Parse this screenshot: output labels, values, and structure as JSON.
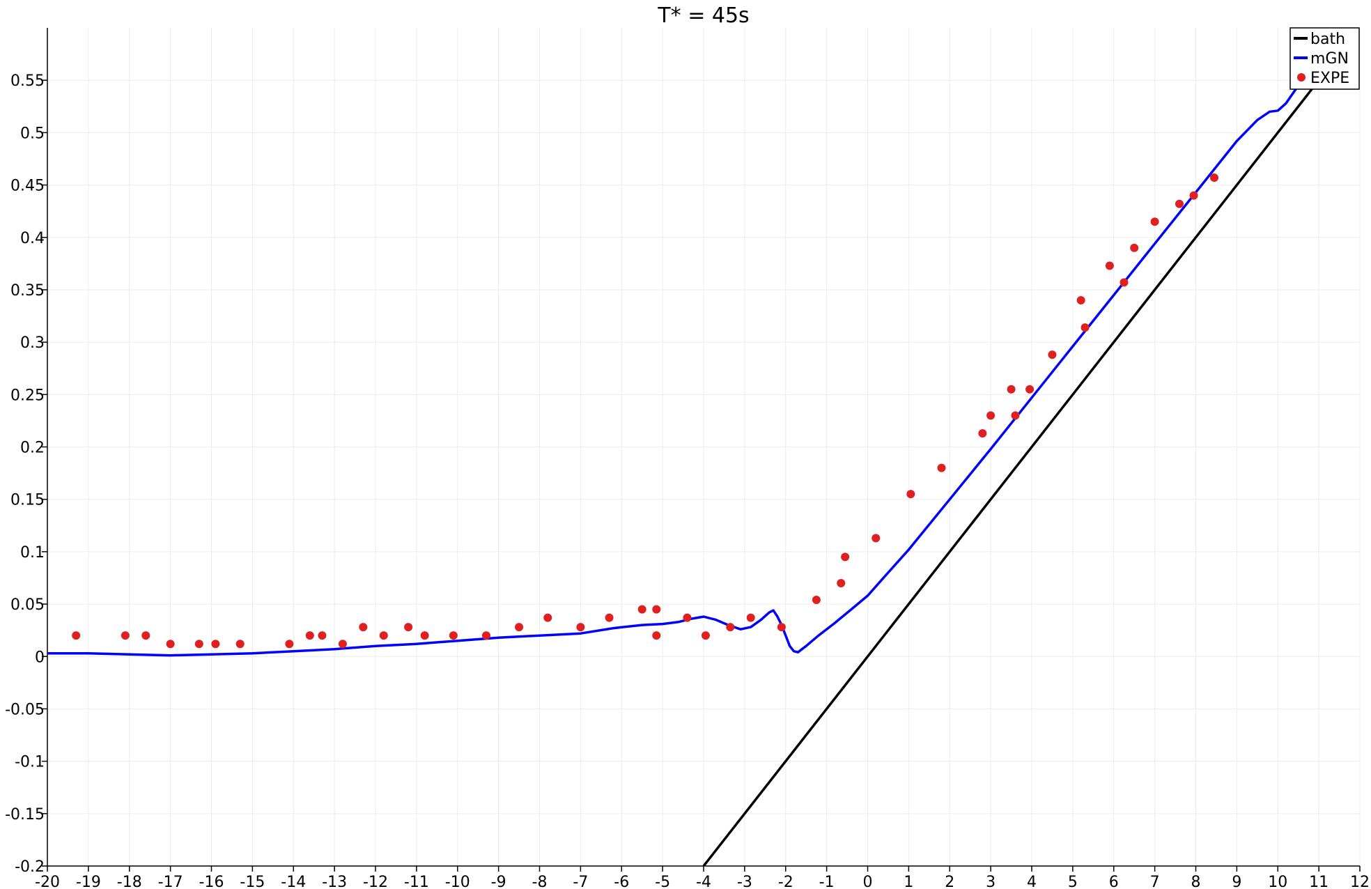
{
  "chart_data": {
    "type": "line",
    "title": "T* = 45s",
    "xlabel": "",
    "ylabel": "",
    "xlim": [
      -20,
      12
    ],
    "ylim": [
      -0.2,
      0.6
    ],
    "grid": true,
    "legend_position": "top-right",
    "x_ticks": [
      -20,
      -19,
      -18,
      -17,
      -16,
      -15,
      -14,
      -13,
      -12,
      -11,
      -10,
      -9,
      -8,
      -7,
      -6,
      -5,
      -4,
      -3,
      -2,
      -1,
      0,
      1,
      2,
      3,
      4,
      5,
      6,
      7,
      8,
      9,
      10,
      11,
      12
    ],
    "x_tick_labels": [
      "-20",
      "-19",
      "-18",
      "-17",
      "-16",
      "-15",
      "-14",
      "-13",
      "-12",
      "-11",
      "-10",
      "-9",
      "-8",
      "-7",
      "-6",
      "-5",
      "-4",
      "-3",
      "-2",
      "-1",
      "0",
      "1",
      "2",
      "3",
      "4",
      "5",
      "6",
      "7",
      "8",
      "9",
      "10",
      "11",
      "12"
    ],
    "y_ticks": [
      -0.2,
      -0.15,
      -0.1,
      -0.05,
      0,
      0.05,
      0.1,
      0.15,
      0.2,
      0.25,
      0.3,
      0.35,
      0.4,
      0.45,
      0.5,
      0.55
    ],
    "y_tick_labels": [
      "-0.2",
      "-0.15",
      "-0.1",
      "-0.05",
      "0",
      "0.05",
      "0.1",
      "0.15",
      "0.2",
      "0.25",
      "0.3",
      "0.35",
      "0.4",
      "0.45",
      "0.5",
      "0.55"
    ],
    "series": [
      {
        "name": "bath",
        "kind": "line",
        "color": "#000000",
        "x": [
          -4.0,
          11.0
        ],
        "y": [
          -0.2,
          0.55
        ]
      },
      {
        "name": "mGN",
        "kind": "line",
        "color": "#0000ff",
        "x": [
          -20,
          -19,
          -18,
          -17,
          -16,
          -15,
          -14,
          -13,
          -12,
          -11,
          -10,
          -9,
          -8,
          -7,
          -6.2,
          -5.5,
          -5,
          -4.6,
          -4.3,
          -4,
          -3.7,
          -3.4,
          -3.1,
          -2.85,
          -2.6,
          -2.4,
          -2.3,
          -2.2,
          -2.1,
          -2.0,
          -1.9,
          -1.8,
          -1.7,
          -1.5,
          -1.2,
          -0.8,
          -0.4,
          0,
          0.5,
          1,
          2,
          3,
          4,
          5,
          6,
          7,
          8,
          9,
          9.5,
          9.8,
          10.0,
          10.2,
          10.5,
          11.0
        ],
        "y": [
          0.003,
          0.003,
          0.002,
          0.001,
          0.002,
          0.003,
          0.005,
          0.007,
          0.01,
          0.012,
          0.015,
          0.018,
          0.02,
          0.022,
          0.027,
          0.03,
          0.031,
          0.033,
          0.036,
          0.038,
          0.035,
          0.03,
          0.026,
          0.028,
          0.035,
          0.042,
          0.044,
          0.038,
          0.03,
          0.02,
          0.01,
          0.005,
          0.004,
          0.01,
          0.02,
          0.032,
          0.045,
          0.058,
          0.08,
          0.102,
          0.15,
          0.198,
          0.247,
          0.296,
          0.345,
          0.394,
          0.443,
          0.492,
          0.512,
          0.52,
          0.521,
          0.528,
          0.545,
          0.575
        ]
      },
      {
        "name": "EXPE",
        "kind": "scatter",
        "color": "#e02020",
        "x": [
          -19.3,
          -18.1,
          -17.6,
          -17.0,
          -16.3,
          -15.9,
          -15.3,
          -14.1,
          -13.6,
          -13.3,
          -12.8,
          -12.3,
          -11.8,
          -11.2,
          -10.8,
          -10.1,
          -9.3,
          -8.5,
          -7.8,
          -7.0,
          -6.3,
          -5.5,
          -5.15,
          -5.15,
          -4.4,
          -3.95,
          -3.35,
          -2.85,
          -2.1,
          -1.25,
          -0.65,
          -0.55,
          0.2,
          1.05,
          1.8,
          2.8,
          3.0,
          3.5,
          3.6,
          3.95,
          4.5,
          5.2,
          5.3,
          5.9,
          6.25,
          6.5,
          7.0,
          7.6,
          7.95,
          8.45
        ],
        "y": [
          0.02,
          0.02,
          0.02,
          0.012,
          0.012,
          0.012,
          0.012,
          0.012,
          0.02,
          0.02,
          0.012,
          0.028,
          0.02,
          0.028,
          0.02,
          0.02,
          0.02,
          0.028,
          0.037,
          0.028,
          0.037,
          0.045,
          0.045,
          0.02,
          0.037,
          0.02,
          0.028,
          0.037,
          0.028,
          0.054,
          0.07,
          0.095,
          0.113,
          0.155,
          0.18,
          0.213,
          0.23,
          0.255,
          0.23,
          0.255,
          0.288,
          0.34,
          0.314,
          0.373,
          0.357,
          0.39,
          0.415,
          0.432,
          0.44,
          0.457
        ]
      }
    ]
  }
}
